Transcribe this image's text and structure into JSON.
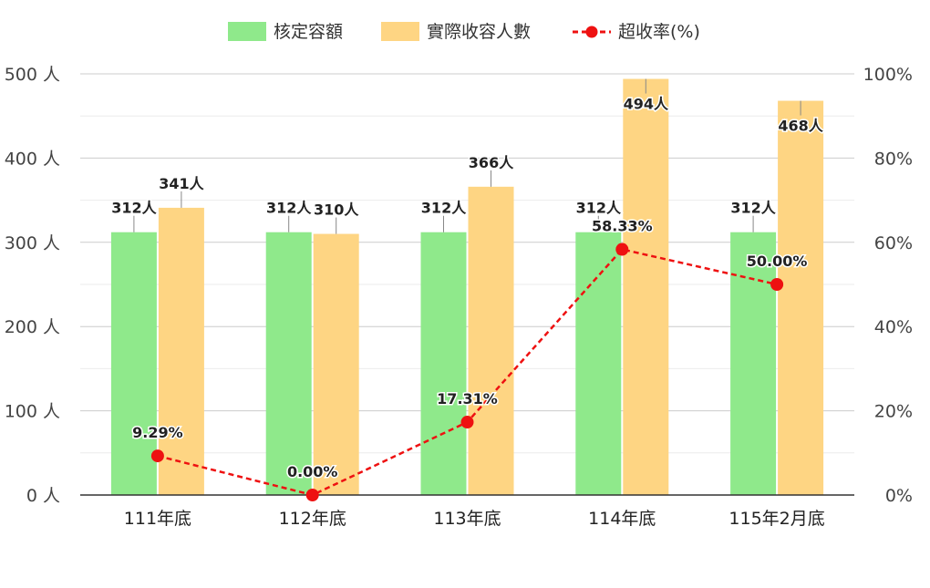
{
  "chart_data": {
    "type": "bar",
    "categories": [
      "111年底",
      "112年底",
      "113年底",
      "114年底",
      "115年2月底"
    ],
    "series": [
      {
        "name": "核定容額",
        "values": [
          312,
          312,
          312,
          312,
          312
        ],
        "labels": [
          "312人",
          "312人",
          "312人",
          "312人",
          "312人"
        ],
        "color": "#8fe98b"
      },
      {
        "name": "實際收容人數",
        "values": [
          341,
          310,
          366,
          494,
          468
        ],
        "labels": [
          "341人",
          "310人",
          "366人",
          "494人",
          "468人"
        ],
        "color": "#fed583"
      }
    ],
    "line_series": {
      "name": "超收率(%)",
      "values": [
        9.29,
        0.0,
        17.31,
        58.33,
        50.0
      ],
      "labels": [
        "9.29%",
        "0.00%",
        "17.31%",
        "58.33%",
        "50.00%"
      ],
      "color": "#ee1111"
    },
    "y_left": {
      "ylim": [
        0,
        500
      ],
      "ticks": [
        0,
        100,
        200,
        300,
        400,
        500
      ],
      "tick_labels": [
        "0 人",
        "100 人",
        "200 人",
        "300 人",
        "400 人",
        "500 人"
      ]
    },
    "y_right": {
      "ylim": [
        0,
        100
      ],
      "ticks": [
        0,
        20,
        40,
        60,
        80,
        100
      ],
      "tick_labels": [
        "0%",
        "20%",
        "40%",
        "60%",
        "80%",
        "100%"
      ]
    },
    "grid": true,
    "legend_position": "top-center"
  }
}
